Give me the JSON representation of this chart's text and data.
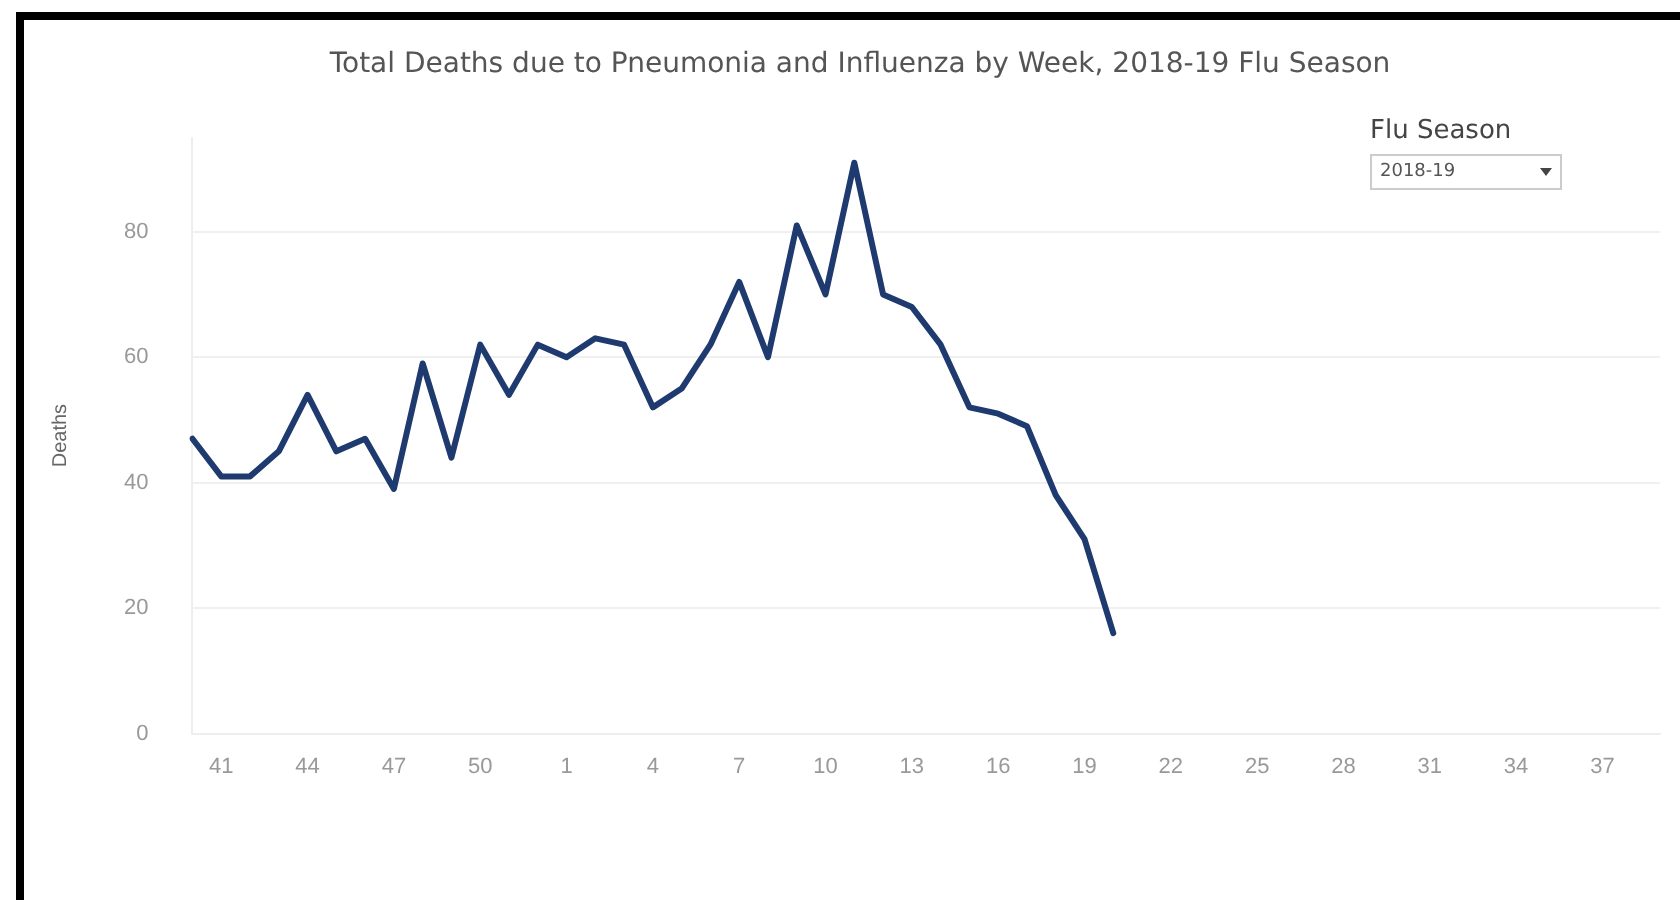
{
  "chart_data": {
    "type": "line",
    "title": "Total Deaths due to Pneumonia and Influenza by Week, 2018-19 Flu Season",
    "ylabel": "Deaths",
    "annotations": [
      "Flu Season",
      "2018-19"
    ],
    "categories": [
      null,
      "41",
      null,
      null,
      "44",
      null,
      null,
      "47",
      null,
      null,
      "50",
      null,
      null,
      "1",
      null,
      null,
      "4",
      null,
      null,
      "7",
      null,
      null,
      "10",
      null,
      null,
      "13",
      null,
      null,
      "16",
      null,
      null,
      "19",
      null,
      null,
      "22",
      null,
      null,
      "25",
      null,
      null,
      "28",
      null,
      null,
      "31",
      null,
      null,
      "34",
      null,
      null,
      "37",
      null,
      null
    ],
    "series": [
      {
        "color": "#1f3a6e",
        "values": [
          47,
          41,
          41,
          45,
          54,
          45,
          47,
          39,
          59,
          44,
          62,
          54,
          62,
          60,
          63,
          62,
          52,
          55,
          62,
          72,
          60,
          81,
          70,
          91,
          70,
          68,
          62,
          52,
          51,
          49,
          38,
          31,
          16,
          null,
          null,
          null,
          null,
          null,
          null,
          null,
          null,
          null,
          null,
          null,
          null,
          null,
          null,
          null,
          null,
          null,
          null,
          null
        ]
      }
    ],
    "ylim": [
      0,
      95
    ],
    "yticks": [
      0,
      20,
      40,
      60,
      80
    ],
    "grid": "y",
    "legend": false,
    "marker": "none",
    "line_style": "solid"
  }
}
